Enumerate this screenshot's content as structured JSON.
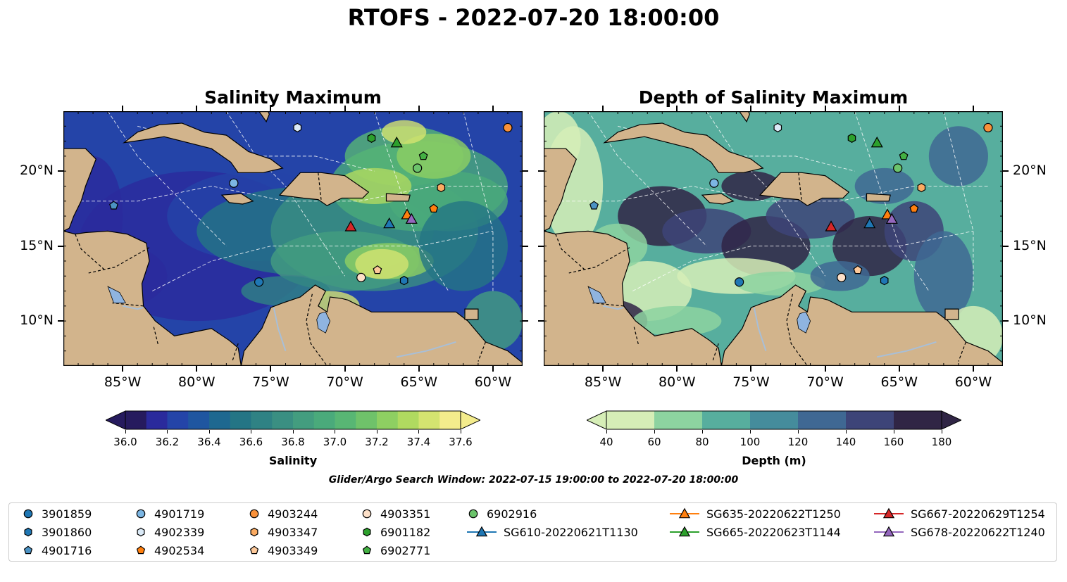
{
  "suptitle": "RTOFS - 2022-07-20 18:00:00",
  "search_window": "Glider/Argo Search Window: 2022-07-15 19:00:00 to 2022-07-20 18:00:00",
  "maps": [
    {
      "title": "Salinity Maximum",
      "lon_ticks": [
        "85°W",
        "80°W",
        "75°W",
        "70°W",
        "65°W",
        "60°W"
      ],
      "lat_ticks": [
        "20°N",
        "15°N",
        "10°N"
      ],
      "extent": {
        "lon": [
          -89,
          -58
        ],
        "lat": [
          7,
          24
        ]
      }
    },
    {
      "title": "Depth of Salinity Maximum",
      "lon_ticks": [
        "85°W",
        "80°W",
        "75°W",
        "70°W",
        "65°W",
        "60°W"
      ],
      "lat_ticks": [
        "20°N",
        "15°N",
        "10°N"
      ],
      "extent": {
        "lon": [
          -89,
          -58
        ],
        "lat": [
          7,
          24
        ]
      }
    }
  ],
  "colorbars": [
    {
      "label": "Salinity",
      "ticks": [
        "36.0",
        "36.2",
        "36.4",
        "36.6",
        "36.8",
        "37.0",
        "37.2",
        "37.4",
        "37.6"
      ],
      "extend": "both",
      "colors": [
        "#261b5e",
        "#2a2a9c",
        "#2444a8",
        "#1f56a0",
        "#1e6890",
        "#247585",
        "#2f8284",
        "#3a8f82",
        "#439d7f",
        "#4aaa7b",
        "#58b674",
        "#6fc26a",
        "#8ecf62",
        "#b0da60",
        "#d4e470",
        "#f4ec8c"
      ]
    },
    {
      "label": "Depth (m)",
      "ticks": [
        "40",
        "60",
        "80",
        "100",
        "120",
        "140",
        "160",
        "180"
      ],
      "extend": "both",
      "colors": [
        "#d6eeb7",
        "#8dd3a0",
        "#57ae9e",
        "#458c9c",
        "#3f6893",
        "#3d4478",
        "#302545"
      ]
    }
  ],
  "platform_positions": [
    {
      "id": "3901859",
      "lon": -75.8,
      "lat": 12.6
    },
    {
      "id": "3901860",
      "lon": -66.0,
      "lat": 12.7
    },
    {
      "id": "4901716",
      "lon": -85.6,
      "lat": 17.7
    },
    {
      "id": "4901719",
      "lon": -77.5,
      "lat": 19.2
    },
    {
      "id": "4902339",
      "lon": -73.2,
      "lat": 22.9
    },
    {
      "id": "4902534",
      "lon": -64.0,
      "lat": 17.5
    },
    {
      "id": "4903244",
      "lon": -59.0,
      "lat": 22.9
    },
    {
      "id": "4903347",
      "lon": -63.5,
      "lat": 18.9
    },
    {
      "id": "4903349",
      "lon": -67.8,
      "lat": 13.4
    },
    {
      "id": "4903351",
      "lon": -68.9,
      "lat": 12.9
    },
    {
      "id": "6901182",
      "lon": -68.2,
      "lat": 22.2
    },
    {
      "id": "6902771",
      "lon": -64.7,
      "lat": 21.0
    },
    {
      "id": "6902916",
      "lon": -65.1,
      "lat": 20.2
    },
    {
      "id": "SG610-20220621T1130",
      "lon": -67.0,
      "lat": 16.5
    },
    {
      "id": "SG635-20220622T1250",
      "lon": -65.8,
      "lat": 17.1
    },
    {
      "id": "SG665-20220623T1144",
      "lon": -66.5,
      "lat": 21.9
    },
    {
      "id": "SG667-20220629T1254",
      "lon": -69.6,
      "lat": 16.3
    },
    {
      "id": "SG678-20220622T1240",
      "lon": -65.5,
      "lat": 16.8
    }
  ],
  "legend": [
    {
      "label": "3901859",
      "marker": "circle",
      "color": "#1f77b4"
    },
    {
      "label": "3901860",
      "marker": "hexagon",
      "color": "#1f77b4"
    },
    {
      "label": "4901716",
      "marker": "pentagon",
      "color": "#4c92c3"
    },
    {
      "label": "4901719",
      "marker": "circle",
      "color": "#7cb6e3"
    },
    {
      "label": "4902339",
      "marker": "hexagon",
      "color": "#dbeaf7"
    },
    {
      "label": "4902534",
      "marker": "pentagon",
      "color": "#ff7f0e"
    },
    {
      "label": "4903244",
      "marker": "circle",
      "color": "#f9913a"
    },
    {
      "label": "4903347",
      "marker": "hexagon",
      "color": "#fbab62"
    },
    {
      "label": "4903349",
      "marker": "pentagon",
      "color": "#fdc99a"
    },
    {
      "label": "4903351",
      "marker": "circle",
      "color": "#fde0c8"
    },
    {
      "label": "6901182",
      "marker": "hexagon",
      "color": "#2ca02c"
    },
    {
      "label": "6902771",
      "marker": "pentagon",
      "color": "#43b043"
    },
    {
      "label": "6902916",
      "marker": "circle",
      "color": "#6cc46c"
    },
    {
      "label": "SG610-20220621T1130",
      "marker": "triangle-line",
      "color": "#1f77b4"
    },
    {
      "label": "SG635-20220622T1250",
      "marker": "triangle-line",
      "color": "#ff7f0e"
    },
    {
      "label": "SG665-20220623T1144",
      "marker": "triangle-line",
      "color": "#2ca02c"
    },
    {
      "label": "SG667-20220629T1254",
      "marker": "triangle-line",
      "color": "#d62728"
    },
    {
      "label": "SG678-20220622T1240",
      "marker": "triangle-line",
      "color": "#9467bd"
    }
  ],
  "land_color": "#d2b48c",
  "river_color": "#a8bfd8"
}
